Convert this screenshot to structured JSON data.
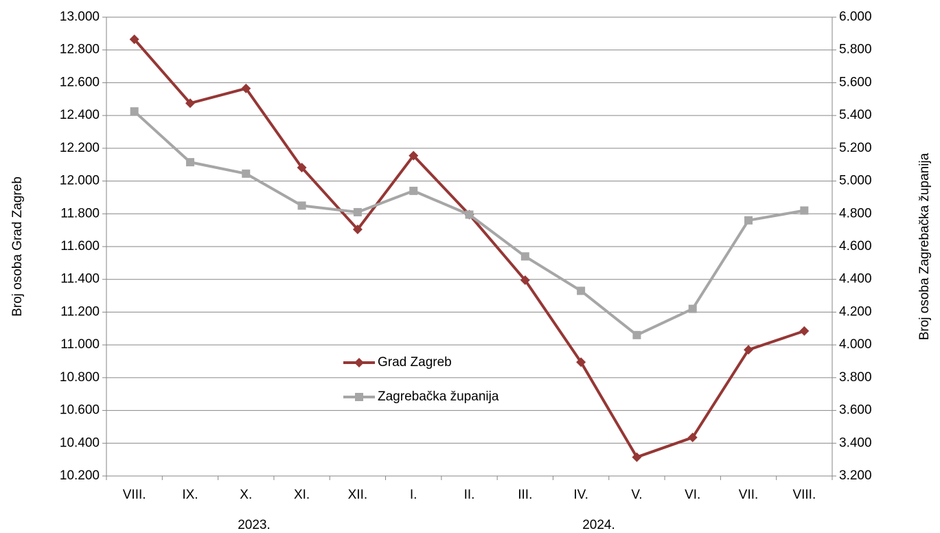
{
  "chart_data": {
    "type": "line",
    "categories": [
      "VIII.",
      "IX.",
      "X.",
      "XI.",
      "XII.",
      "I.",
      "II.",
      "III.",
      "IV.",
      "V.",
      "VI.",
      "VII.",
      "VIII."
    ],
    "year_labels": [
      "2023.",
      "2024."
    ],
    "ylabel": "Broj osoba Grad Zagreb",
    "y2label": "Broj osoba Zagrebačka županija",
    "ylim": [
      10200,
      13000
    ],
    "yticks": [
      {
        "value": 10200,
        "label": "10.200"
      },
      {
        "value": 10400,
        "label": "10.400"
      },
      {
        "value": 10600,
        "label": "10.600"
      },
      {
        "value": 10800,
        "label": "10.800"
      },
      {
        "value": 11000,
        "label": "11.000"
      },
      {
        "value": 11200,
        "label": "11.200"
      },
      {
        "value": 11400,
        "label": "11.400"
      },
      {
        "value": 11600,
        "label": "11.600"
      },
      {
        "value": 11800,
        "label": "11.800"
      },
      {
        "value": 12000,
        "label": "12.000"
      },
      {
        "value": 12200,
        "label": "12.200"
      },
      {
        "value": 12400,
        "label": "12.400"
      },
      {
        "value": 12600,
        "label": "12.600"
      },
      {
        "value": 12800,
        "label": "12.800"
      },
      {
        "value": 13000,
        "label": "13.000"
      }
    ],
    "y2lim": [
      3200,
      6000
    ],
    "y2ticks": [
      {
        "value": 3200,
        "label": "3.200"
      },
      {
        "value": 3400,
        "label": "3.400"
      },
      {
        "value": 3600,
        "label": "3.600"
      },
      {
        "value": 3800,
        "label": "3.800"
      },
      {
        "value": 4000,
        "label": "4.000"
      },
      {
        "value": 4200,
        "label": "4.200"
      },
      {
        "value": 4400,
        "label": "4.400"
      },
      {
        "value": 4600,
        "label": "4.600"
      },
      {
        "value": 4800,
        "label": "4.800"
      },
      {
        "value": 5000,
        "label": "5.000"
      },
      {
        "value": 5200,
        "label": "5.200"
      },
      {
        "value": 5400,
        "label": "5.400"
      },
      {
        "value": 5600,
        "label": "5.600"
      },
      {
        "value": 5800,
        "label": "5.800"
      },
      {
        "value": 6000,
        "label": "6.000"
      }
    ],
    "grid": true,
    "series": [
      {
        "name": "Grad Zagreb",
        "color": "#953735",
        "marker": "diamond",
        "values": [
          12865,
          12475,
          12565,
          12082,
          11705,
          12155,
          11795,
          11395,
          10895,
          10315,
          10435,
          10970,
          11085
        ]
      },
      {
        "name": "Zagrebačka županija",
        "color": "#a6a6a6",
        "marker": "square",
        "axis": "y2",
        "values": [
          5425,
          5115,
          5045,
          4850,
          4810,
          4940,
          4795,
          4540,
          4330,
          4060,
          4220,
          4760,
          4820
        ]
      }
    ]
  }
}
